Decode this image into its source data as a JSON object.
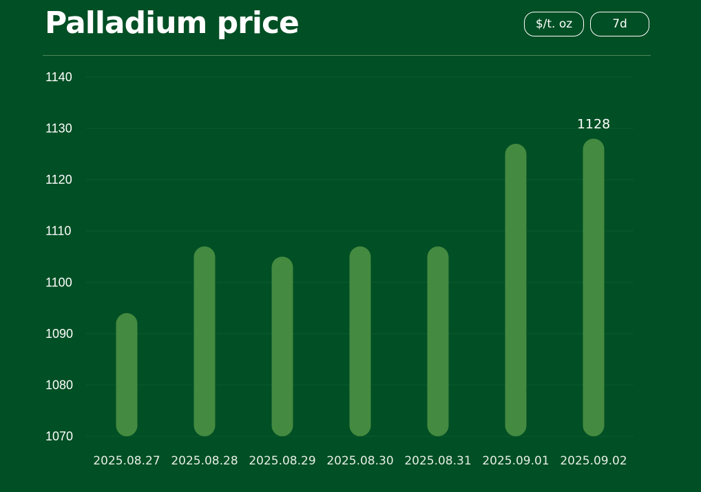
{
  "header": {
    "title": "Palladium price",
    "unit_button": "$/t. oz",
    "range_button": "7d"
  },
  "colors": {
    "background": "#014f24",
    "bar": "#448a40",
    "grid": "#0c5a2c"
  },
  "chart_data": {
    "type": "bar",
    "title": "Palladium price",
    "xlabel": "",
    "ylabel": "",
    "categories": [
      "2025.08.27",
      "2025.08.28",
      "2025.08.29",
      "2025.08.30",
      "2025.08.31",
      "2025.09.01",
      "2025.09.02"
    ],
    "values": [
      1094,
      1107,
      1105,
      1107,
      1107,
      1127,
      1128
    ],
    "ylim": [
      1070,
      1140
    ],
    "yticks": [
      1070,
      1080,
      1090,
      1100,
      1110,
      1120,
      1130,
      1140
    ],
    "data_labels": [
      {
        "category": "2025.09.02",
        "text": "1128"
      }
    ],
    "grid": true,
    "legend": "none"
  }
}
